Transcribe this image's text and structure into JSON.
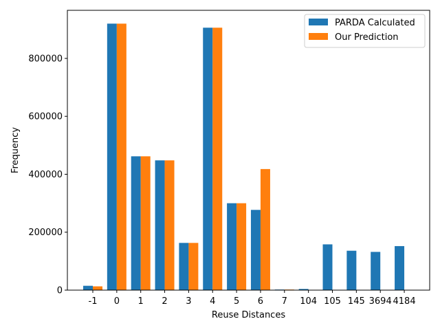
{
  "chart_data": {
    "type": "bar",
    "title": "",
    "xlabel": "Reuse Distances",
    "ylabel": "Frequency",
    "categories": [
      "-1",
      "0",
      "1",
      "2",
      "3",
      "4",
      "5",
      "6",
      "7",
      "104",
      "105",
      "145",
      "3694",
      "4184"
    ],
    "series": [
      {
        "name": "PARDA Calculated",
        "color": "#1f77b4",
        "values": [
          15000,
          920000,
          462000,
          448000,
          163000,
          906000,
          300000,
          277000,
          2000,
          4000,
          158000,
          136000,
          132000,
          152000
        ]
      },
      {
        "name": "Our Prediction",
        "color": "#ff7f0e",
        "values": [
          13000,
          920000,
          462000,
          448000,
          163000,
          906000,
          300000,
          418000,
          2000,
          0,
          0,
          0,
          0,
          0
        ]
      }
    ],
    "ylim": [
      0,
      966000
    ],
    "yticks": [
      0,
      200000,
      400000,
      600000,
      800000
    ],
    "legend_position": "top-right",
    "grid": false
  }
}
